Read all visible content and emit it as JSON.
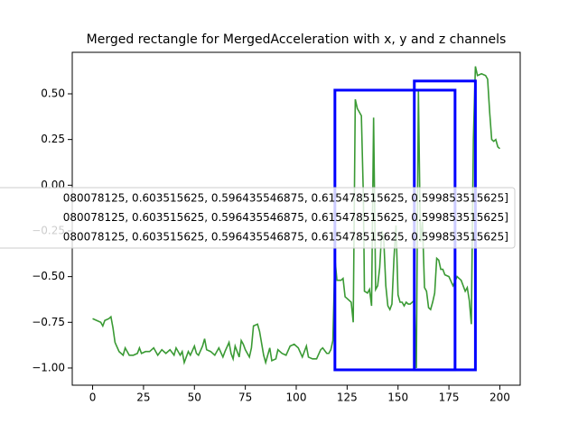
{
  "chart_data": {
    "type": "line",
    "title": "Merged rectangle for MergedAcceleration with x, y and z channels",
    "x": [
      0,
      2,
      4,
      5,
      6,
      8,
      9,
      10,
      11,
      13,
      15,
      16,
      18,
      20,
      22,
      23,
      24,
      26,
      28,
      30,
      32,
      34,
      36,
      38,
      40,
      41,
      43,
      44,
      45,
      47,
      48,
      50,
      51,
      52,
      54,
      55,
      56,
      58,
      60,
      62,
      64,
      65,
      67,
      68,
      69,
      70,
      72,
      73,
      74,
      75,
      77,
      78,
      79,
      81,
      82,
      84,
      85,
      87,
      88,
      90,
      91,
      93,
      95,
      97,
      99,
      101,
      103,
      105,
      106,
      108,
      110,
      112,
      113,
      115,
      116,
      117,
      118,
      119,
      120,
      122,
      123,
      124,
      125,
      127,
      128,
      129,
      130,
      132,
      133,
      133.5,
      135,
      136,
      137,
      138,
      139,
      140,
      141,
      142,
      143,
      144,
      145,
      146,
      147,
      148,
      149,
      150,
      151,
      152,
      153,
      154,
      155,
      156,
      157,
      158,
      159,
      160,
      161,
      162,
      163,
      164,
      165,
      166,
      167,
      168,
      169,
      170,
      171,
      172,
      173,
      175,
      177,
      179,
      181,
      183,
      184,
      185,
      186,
      187,
      188,
      189,
      191,
      193,
      194,
      195,
      196,
      197,
      198,
      199,
      200
    ],
    "series": [
      {
        "color": "#3a9a34",
        "values": [
          -0.73,
          -0.74,
          -0.75,
          -0.77,
          -0.74,
          -0.73,
          -0.72,
          -0.78,
          -0.86,
          -0.91,
          -0.93,
          -0.89,
          -0.93,
          -0.93,
          -0.92,
          -0.89,
          -0.92,
          -0.91,
          -0.91,
          -0.89,
          -0.93,
          -0.9,
          -0.92,
          -0.9,
          -0.93,
          -0.89,
          -0.93,
          -0.91,
          -0.97,
          -0.91,
          -0.93,
          -0.88,
          -0.92,
          -0.93,
          -0.88,
          -0.84,
          -0.9,
          -0.91,
          -0.93,
          -0.89,
          -0.94,
          -0.91,
          -0.86,
          -0.92,
          -0.95,
          -0.88,
          -0.94,
          -0.85,
          -0.87,
          -0.9,
          -0.94,
          -0.89,
          -0.77,
          -0.76,
          -0.8,
          -0.93,
          -0.97,
          -0.89,
          -0.96,
          -0.95,
          -0.9,
          -0.92,
          -0.93,
          -0.88,
          -0.87,
          -0.89,
          -0.94,
          -0.88,
          -0.94,
          -0.95,
          -0.95,
          -0.9,
          -0.89,
          -0.92,
          -0.92,
          -0.9,
          -0.85,
          -0.4,
          -0.52,
          -0.52,
          -0.51,
          -0.61,
          -0.62,
          -0.64,
          -0.75,
          0.47,
          0.42,
          0.38,
          -0.07,
          -0.58,
          -0.59,
          -0.57,
          -0.66,
          0.37,
          -0.57,
          -0.55,
          -0.45,
          -0.25,
          -0.3,
          -0.55,
          -0.66,
          -0.68,
          -0.65,
          -0.4,
          -0.22,
          -0.6,
          -0.64,
          -0.64,
          -0.66,
          -0.64,
          -0.65,
          -0.65,
          -0.64,
          -0.63,
          -1.0,
          0.52,
          -0.31,
          -0.2,
          -0.56,
          -0.58,
          -0.67,
          -0.68,
          -0.64,
          -0.59,
          -0.4,
          -0.41,
          -0.46,
          -0.46,
          -0.49,
          -0.5,
          -0.55,
          -0.5,
          -0.52,
          -0.58,
          -0.56,
          -0.63,
          -0.76,
          0.25,
          0.65,
          0.6,
          0.61,
          0.6,
          0.58,
          0.4,
          0.25,
          0.24,
          0.25,
          0.21,
          0.2
        ]
      }
    ],
    "rectangles": [
      {
        "color": "#0000ff",
        "x": [
          119,
          178
        ],
        "y": [
          -1.01,
          0.52
        ]
      },
      {
        "color": "#0000ff",
        "x": [
          158,
          188
        ],
        "y": [
          -1.01,
          0.57
        ]
      }
    ],
    "legend_labels": [
      "080078125, 0.603515625, 0.596435546875, 0.615478515625, 0.599853515625]",
      "080078125, 0.603515625, 0.596435546875, 0.615478515625, 0.599853515625]",
      "080078125, 0.603515625, 0.596435546875, 0.615478515625, 0.599853515625]"
    ],
    "xlim": [
      -10,
      210
    ],
    "ylim": [
      -1.094,
      0.727
    ],
    "xticks": [
      0,
      25,
      50,
      75,
      100,
      125,
      150,
      175,
      200
    ],
    "yticks": [
      {
        "value": 0.5,
        "label": "0.50"
      },
      {
        "value": 0.25,
        "label": "0.25"
      },
      {
        "value": 0,
        "label": "0.00"
      },
      {
        "value": -0.25,
        "label": "−0.25"
      },
      {
        "value": -0.5,
        "label": "−0.50"
      },
      {
        "value": -0.75,
        "label": "−0.75"
      },
      {
        "value": -1,
        "label": "−1.00"
      }
    ]
  }
}
